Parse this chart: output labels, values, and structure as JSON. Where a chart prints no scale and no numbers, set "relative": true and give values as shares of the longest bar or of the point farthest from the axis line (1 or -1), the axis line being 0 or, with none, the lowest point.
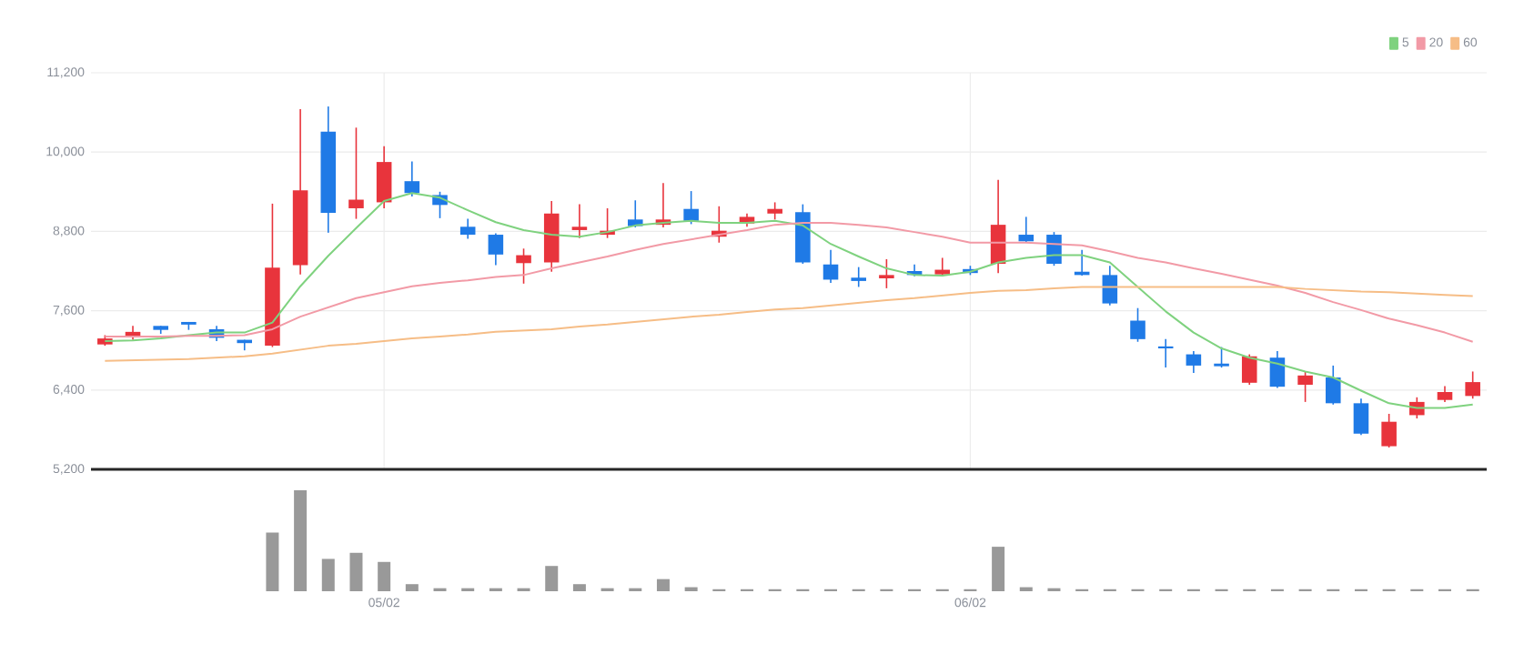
{
  "chart_data": [
    {
      "type": "candlestick",
      "categories": [
        null,
        null,
        null,
        null,
        null,
        null,
        null,
        null,
        null,
        null,
        null,
        null,
        null,
        null,
        null,
        null,
        null,
        null,
        null,
        null,
        null,
        null,
        null,
        null,
        null,
        null,
        null,
        null,
        null,
        null,
        null,
        null,
        null,
        null,
        null,
        null,
        null,
        null,
        null,
        null,
        null,
        null,
        null,
        null,
        null,
        null,
        null,
        null,
        null,
        null
      ],
      "ohlc": [
        [
          7090,
          7230,
          7070,
          7180
        ],
        [
          7220,
          7370,
          7160,
          7280
        ],
        [
          7370,
          7370,
          7250,
          7310
        ],
        [
          7430,
          7430,
          7310,
          7390
        ],
        [
          7320,
          7370,
          7140,
          7190
        ],
        [
          7160,
          7160,
          7000,
          7110
        ],
        [
          7070,
          9220,
          7050,
          8250
        ],
        [
          8290,
          10650,
          8150,
          9420
        ],
        [
          10310,
          10690,
          8780,
          9080
        ],
        [
          9150,
          10370,
          8990,
          9280
        ],
        [
          9240,
          10090,
          9150,
          9850
        ],
        [
          9560,
          9860,
          9330,
          9380
        ],
        [
          9350,
          9400,
          9000,
          9200
        ],
        [
          8870,
          8990,
          8690,
          8750
        ],
        [
          8750,
          8770,
          8290,
          8450
        ],
        [
          8320,
          8540,
          8010,
          8440
        ],
        [
          8330,
          9260,
          8190,
          9070
        ],
        [
          8820,
          9210,
          8700,
          8870
        ],
        [
          8750,
          9150,
          8700,
          8810
        ],
        [
          8980,
          9270,
          8860,
          8880
        ],
        [
          8900,
          9530,
          8860,
          8980
        ],
        [
          9140,
          9410,
          8910,
          8960
        ],
        [
          8720,
          9180,
          8630,
          8810
        ],
        [
          8920,
          9070,
          8870,
          9020
        ],
        [
          9070,
          9240,
          8980,
          9140
        ],
        [
          9090,
          9210,
          8310,
          8330
        ],
        [
          8300,
          8520,
          8020,
          8070
        ],
        [
          8100,
          8260,
          7960,
          8050
        ],
        [
          8090,
          8380,
          7940,
          8140
        ],
        [
          8200,
          8300,
          8120,
          8140
        ],
        [
          8150,
          8400,
          8120,
          8220
        ],
        [
          8230,
          8280,
          8140,
          8170
        ],
        [
          8310,
          9580,
          8170,
          8900
        ],
        [
          8750,
          9020,
          8640,
          8650
        ],
        [
          8750,
          8790,
          8280,
          8310
        ],
        [
          8190,
          8520,
          8130,
          8140
        ],
        [
          8140,
          8280,
          7680,
          7710
        ],
        [
          7450,
          7640,
          7130,
          7170
        ],
        [
          7060,
          7170,
          6740,
          7030
        ],
        [
          6940,
          6990,
          6660,
          6770
        ],
        [
          6800,
          7050,
          6740,
          6760
        ],
        [
          6510,
          6940,
          6480,
          6910
        ],
        [
          6890,
          6990,
          6430,
          6450
        ],
        [
          6480,
          6680,
          6220,
          6620
        ],
        [
          6590,
          6770,
          6180,
          6200
        ],
        [
          6200,
          6270,
          5720,
          5740
        ],
        [
          5550,
          6040,
          5530,
          5920
        ],
        [
          6020,
          6290,
          5970,
          6220
        ],
        [
          6250,
          6460,
          6220,
          6370
        ],
        [
          6310,
          6680,
          6270,
          6520
        ]
      ],
      "colors": [
        "#e8343c",
        "#e8343c",
        "#1f7ae6",
        "#1f7ae6",
        "#1f7ae6",
        "#1f7ae6",
        "#e8343c",
        "#e8343c",
        "#1f7ae6",
        "#e8343c",
        "#e8343c",
        "#1f7ae6",
        "#1f7ae6",
        "#1f7ae6",
        "#1f7ae6",
        "#e8343c",
        "#e8343c",
        "#e8343c",
        "#e8343c",
        "#1f7ae6",
        "#e8343c",
        "#1f7ae6",
        "#e8343c",
        "#e8343c",
        "#e8343c",
        "#1f7ae6",
        "#1f7ae6",
        "#1f7ae6",
        "#e8343c",
        "#1f7ae6",
        "#e8343c",
        "#1f7ae6",
        "#e8343c",
        "#1f7ae6",
        "#1f7ae6",
        "#1f7ae6",
        "#1f7ae6",
        "#1f7ae6",
        "#1f7ae6",
        "#1f7ae6",
        "#1f7ae6",
        "#e8343c",
        "#1f7ae6",
        "#e8343c",
        "#1f7ae6",
        "#1f7ae6",
        "#e8343c",
        "#e8343c",
        "#e8343c",
        "#e8343c"
      ],
      "series": [
        {
          "type": "line",
          "name": "5",
          "color": "#7fd27f",
          "values": [
            7140,
            7150,
            7180,
            7230,
            7270,
            7270,
            7420,
            7970,
            8430,
            8850,
            9260,
            9380,
            9310,
            9120,
            8940,
            8820,
            8750,
            8720,
            8790,
            8890,
            8930,
            8960,
            8930,
            8930,
            8960,
            8890,
            8610,
            8420,
            8240,
            8140,
            8130,
            8190,
            8330,
            8400,
            8440,
            8440,
            8330,
            7960,
            7590,
            7270,
            7030,
            6890,
            6800,
            6680,
            6590,
            6390,
            6200,
            6130,
            6130,
            6180
          ]
        },
        {
          "type": "line",
          "name": "20",
          "color": "#f29aa6",
          "values": [
            7210,
            7210,
            7210,
            7220,
            7220,
            7230,
            7320,
            7510,
            7650,
            7790,
            7880,
            7970,
            8020,
            8060,
            8110,
            8140,
            8240,
            8330,
            8420,
            8520,
            8610,
            8680,
            8750,
            8820,
            8900,
            8930,
            8930,
            8900,
            8860,
            8790,
            8720,
            8630,
            8630,
            8630,
            8610,
            8590,
            8500,
            8400,
            8330,
            8240,
            8160,
            8070,
            7980,
            7870,
            7730,
            7610,
            7480,
            7380,
            7270,
            7130
          ]
        },
        {
          "type": "line",
          "name": "60",
          "color": "#f6bd86",
          "values": [
            6840,
            6850,
            6860,
            6870,
            6890,
            6910,
            6950,
            7010,
            7070,
            7100,
            7140,
            7180,
            7210,
            7240,
            7280,
            7300,
            7320,
            7360,
            7390,
            7430,
            7470,
            7510,
            7540,
            7580,
            7620,
            7640,
            7680,
            7720,
            7760,
            7790,
            7830,
            7870,
            7900,
            7910,
            7940,
            7960,
            7960,
            7960,
            7960,
            7960,
            7960,
            7960,
            7960,
            7930,
            7910,
            7890,
            7880,
            7860,
            7840,
            7820
          ]
        }
      ],
      "ylim": [
        5200,
        11200
      ],
      "yticks": [
        {
          "value": 5200,
          "label": "5,200"
        },
        {
          "value": 6400,
          "label": "6,400"
        },
        {
          "value": 7600,
          "label": "7,600"
        },
        {
          "value": 8800,
          "label": "8,800"
        },
        {
          "value": 10000,
          "label": "10,000"
        },
        {
          "value": 11200,
          "label": "11,200"
        }
      ],
      "grid": true,
      "legend": "top right",
      "tick_labels": "y"
    },
    {
      "type": "bar",
      "relative": true,
      "tick_labels": "x",
      "color": "#999999",
      "categories": [
        null,
        null,
        null,
        null,
        null,
        null,
        null,
        null,
        null,
        null,
        "05/02",
        null,
        null,
        null,
        null,
        null,
        null,
        null,
        null,
        null,
        null,
        null,
        null,
        null,
        null,
        null,
        null,
        null,
        null,
        null,
        null,
        "06/02",
        null,
        null,
        null,
        null,
        null,
        null,
        null,
        null,
        null,
        null,
        null,
        null,
        null,
        null,
        null,
        null,
        null,
        null
      ],
      "values": [
        null,
        null,
        null,
        null,
        null,
        null,
        0.58,
        1,
        0.32,
        0.38,
        0.29,
        0.07,
        0.03,
        0.03,
        0.03,
        0.03,
        0.25,
        0.07,
        0.03,
        0.03,
        0.12,
        0.04,
        0.02,
        0.02,
        0.02,
        0.02,
        0.02,
        0.02,
        0.02,
        0.02,
        0.02,
        0.02,
        0.44,
        0.04,
        0.03,
        0.02,
        0.02,
        0.02,
        0.02,
        0.02,
        0.02,
        0.02,
        0.02,
        0.02,
        0.02,
        0.02,
        0.02,
        0.02,
        0.02,
        0.02
      ]
    }
  ]
}
